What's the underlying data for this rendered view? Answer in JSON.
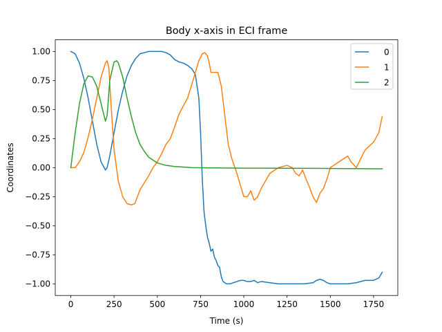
{
  "chart_data": {
    "type": "line",
    "title": "Body x-axis in ECI frame",
    "xlabel": "Time (s)",
    "ylabel": "Coordinates",
    "xlim": [
      -90,
      1890
    ],
    "ylim": [
      -1.1,
      1.1
    ],
    "xticks": [
      0,
      250,
      500,
      750,
      1000,
      1250,
      1500,
      1750
    ],
    "xtick_labels": [
      "0",
      "250",
      "500",
      "750",
      "1000",
      "1250",
      "1500",
      "1750"
    ],
    "yticks": [
      -1.0,
      -0.75,
      -0.5,
      -0.25,
      0.0,
      0.25,
      0.5,
      0.75,
      1.0
    ],
    "ytick_labels": [
      "−1.00",
      "−0.75",
      "−0.50",
      "−0.25",
      "0.00",
      "0.25",
      "0.50",
      "0.75",
      "1.00"
    ],
    "grid": false,
    "legend_position": "top-right",
    "series": [
      {
        "name": "0",
        "color": "#1f77b4",
        "x": [
          0,
          25,
          50,
          75,
          100,
          125,
          150,
          175,
          200,
          210,
          225,
          250,
          275,
          300,
          325,
          350,
          375,
          400,
          425,
          450,
          475,
          500,
          525,
          550,
          575,
          600,
          625,
          650,
          675,
          700,
          720,
          740,
          750,
          760,
          770,
          780,
          790,
          800,
          810,
          820,
          830,
          840,
          850,
          860,
          870,
          880,
          890,
          900,
          920,
          940,
          960,
          980,
          1000,
          1020,
          1040,
          1060,
          1080,
          1100,
          1150,
          1200,
          1250,
          1300,
          1350,
          1400,
          1420,
          1440,
          1460,
          1480,
          1500,
          1550,
          1600,
          1650,
          1700,
          1750,
          1780,
          1800
        ],
        "y": [
          1.0,
          0.98,
          0.9,
          0.77,
          0.6,
          0.4,
          0.2,
          0.05,
          -0.02,
          0.0,
          0.1,
          0.3,
          0.5,
          0.66,
          0.79,
          0.88,
          0.94,
          0.98,
          0.99,
          1.0,
          1.0,
          1.0,
          1.0,
          0.99,
          0.97,
          0.93,
          0.91,
          0.9,
          0.88,
          0.85,
          0.8,
          0.6,
          0.3,
          -0.1,
          -0.38,
          -0.5,
          -0.6,
          -0.65,
          -0.72,
          -0.7,
          -0.77,
          -0.8,
          -0.84,
          -0.86,
          -0.94,
          -0.98,
          -0.99,
          -1.0,
          -1.0,
          -0.99,
          -0.98,
          -0.97,
          -0.97,
          -0.98,
          -0.98,
          -0.97,
          -0.99,
          -0.98,
          -0.99,
          -1.0,
          -1.0,
          -1.0,
          -1.0,
          -0.99,
          -0.97,
          -0.96,
          -0.97,
          -0.99,
          -1.0,
          -1.0,
          -1.0,
          -0.99,
          -0.97,
          -0.97,
          -0.95,
          -0.9
        ]
      },
      {
        "name": "1",
        "color": "#ff7f0e",
        "x": [
          0,
          25,
          50,
          75,
          100,
          125,
          150,
          175,
          200,
          210,
          220,
          230,
          250,
          275,
          300,
          325,
          350,
          370,
          380,
          400,
          425,
          450,
          475,
          500,
          525,
          550,
          575,
          600,
          625,
          650,
          675,
          700,
          720,
          740,
          760,
          775,
          790,
          800,
          810,
          830,
          850,
          870,
          890,
          910,
          930,
          960,
          980,
          1000,
          1020,
          1040,
          1060,
          1080,
          1100,
          1150,
          1200,
          1250,
          1280,
          1300,
          1320,
          1340,
          1360,
          1380,
          1400,
          1420,
          1440,
          1460,
          1480,
          1500,
          1550,
          1600,
          1620,
          1650,
          1700,
          1750,
          1780,
          1800
        ],
        "y": [
          0.0,
          0.0,
          0.05,
          0.13,
          0.26,
          0.42,
          0.6,
          0.78,
          0.9,
          0.92,
          0.86,
          0.6,
          0.15,
          -0.12,
          -0.25,
          -0.31,
          -0.32,
          -0.31,
          -0.27,
          -0.19,
          -0.13,
          -0.07,
          0.0,
          0.05,
          0.12,
          0.2,
          0.25,
          0.35,
          0.46,
          0.53,
          0.6,
          0.72,
          0.82,
          0.92,
          0.98,
          0.99,
          0.96,
          0.9,
          0.82,
          0.82,
          0.82,
          0.7,
          0.45,
          0.2,
          0.08,
          -0.05,
          -0.15,
          -0.25,
          -0.25,
          -0.2,
          -0.28,
          -0.25,
          -0.18,
          -0.05,
          0.0,
          0.02,
          0.0,
          -0.05,
          -0.07,
          -0.02,
          -0.1,
          -0.17,
          -0.25,
          -0.3,
          -0.22,
          -0.18,
          -0.1,
          0.0,
          0.05,
          0.1,
          0.05,
          0.0,
          0.15,
          0.22,
          0.3,
          0.44
        ]
      },
      {
        "name": "2",
        "color": "#2ca02c",
        "x": [
          0,
          25,
          50,
          75,
          100,
          125,
          150,
          175,
          200,
          210,
          225,
          250,
          265,
          275,
          300,
          325,
          350,
          375,
          400,
          425,
          450,
          500,
          550,
          600,
          650,
          700,
          800,
          900,
          1000,
          1200,
          1400,
          1600,
          1800
        ],
        "y": [
          0.0,
          0.3,
          0.55,
          0.72,
          0.79,
          0.78,
          0.7,
          0.55,
          0.4,
          0.45,
          0.75,
          0.91,
          0.92,
          0.9,
          0.78,
          0.6,
          0.44,
          0.3,
          0.2,
          0.14,
          0.09,
          0.04,
          0.02,
          0.01,
          0.005,
          0.0,
          -0.002,
          -0.003,
          -0.004,
          -0.005,
          -0.006,
          -0.008,
          -0.01
        ]
      }
    ]
  }
}
